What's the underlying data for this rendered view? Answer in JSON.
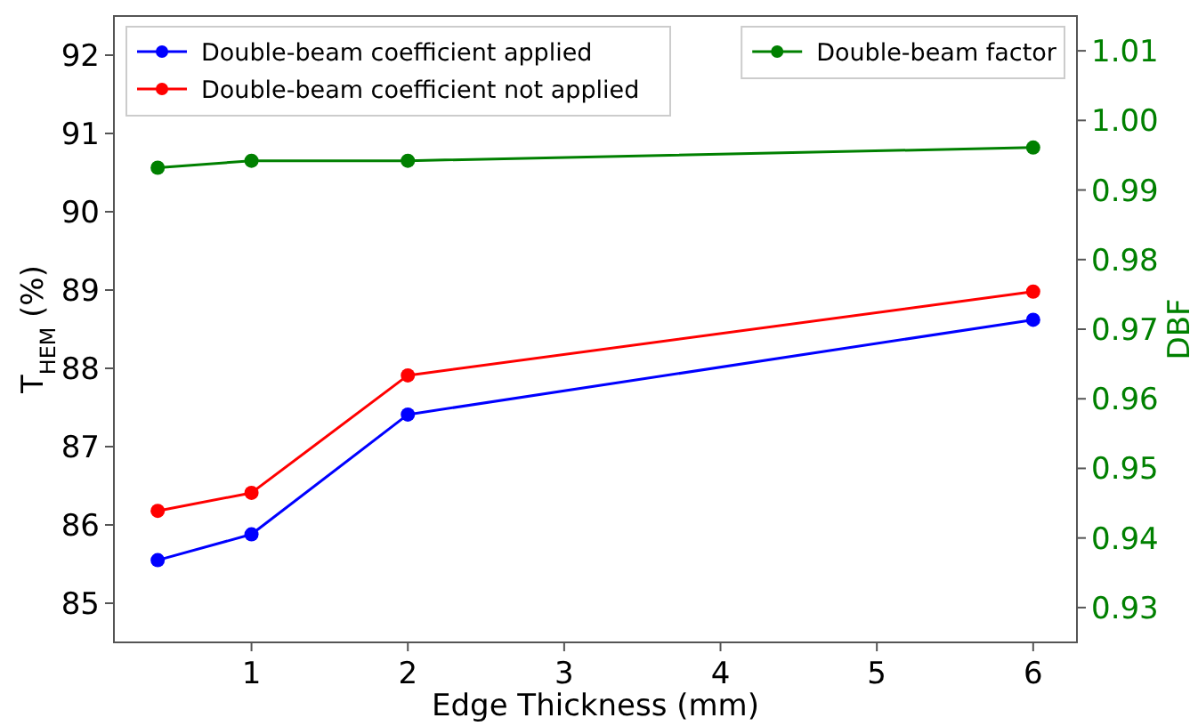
{
  "chart_data": {
    "type": "line",
    "xlabel": "Edge Thickness (mm)",
    "ylabel": "T$_{HEM}$ (%)",
    "y2label": "DBF",
    "x": [
      0.4,
      1,
      2,
      6
    ],
    "series": [
      {
        "name": "Double-beam coefficient applied",
        "color": "#0000ff",
        "values": [
          85.55,
          85.88,
          87.41,
          88.62
        ]
      },
      {
        "name": "Double-beam coefficient not applied",
        "color": "#ff0000",
        "values": [
          86.18,
          86.41,
          87.91,
          88.98
        ]
      },
      {
        "name": "Double-beam factor",
        "color": "#008000",
        "values": [
          0.9932,
          0.9942,
          0.9942,
          0.9961
        ],
        "axis": "y2"
      }
    ],
    "xlim": [
      0.12,
      6.28
    ],
    "xticks": [
      1,
      2,
      3,
      4,
      5,
      6
    ],
    "ylim": [
      84.5,
      92.5
    ],
    "yticks": [
      85,
      86,
      87,
      88,
      89,
      90,
      91,
      92
    ],
    "y2lim": [
      0.925,
      1.015
    ],
    "y2ticks": [
      {
        "value": 0.93,
        "label": "0.93"
      },
      {
        "value": 0.94,
        "label": "0.94"
      },
      {
        "value": 0.95,
        "label": "0.95"
      },
      {
        "value": 0.96,
        "label": "0.96"
      },
      {
        "value": 0.97,
        "label": "0.97"
      },
      {
        "value": 0.98,
        "label": "0.98"
      },
      {
        "value": 0.99,
        "label": "0.99"
      },
      {
        "value": 1.0,
        "label": "1.00"
      },
      {
        "value": 1.01,
        "label": "1.01"
      }
    ],
    "marker": "circle",
    "line_style": "solid",
    "grid": false,
    "legend": "top"
  }
}
